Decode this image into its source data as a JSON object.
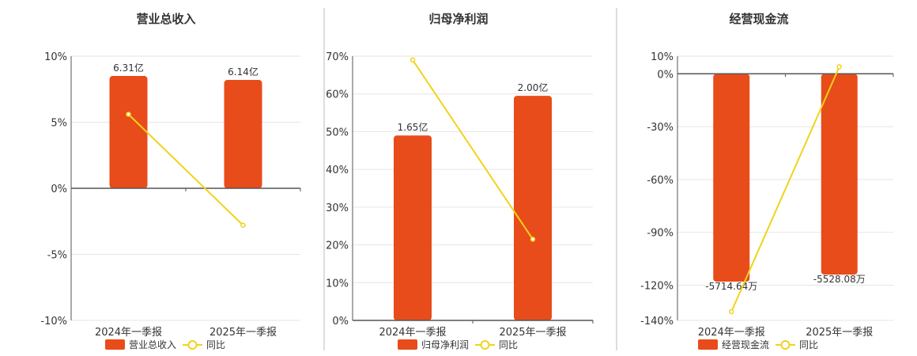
{
  "colors": {
    "bar": "#E84C1A",
    "line": "#F2D21B",
    "axis": "#555555",
    "grid": "#E6E6E6",
    "divider": "#BBBBBB",
    "text": "#333333"
  },
  "chart_data": [
    {
      "type": "bar",
      "title": "营业总收入",
      "categories": [
        "2024年一季报",
        "2025年一季报"
      ],
      "series": [
        {
          "name": "营业总收入",
          "kind": "bar",
          "labels": [
            "6.31亿",
            "6.14亿"
          ],
          "values": [
            8.5,
            8.2
          ]
        },
        {
          "name": "同比",
          "kind": "line",
          "values": [
            5.6,
            -2.8
          ]
        }
      ],
      "yticks": [
        "10%",
        "5%",
        "0%",
        "-5%",
        "-10%"
      ],
      "ytick_values": [
        10,
        5,
        0,
        -5,
        -10
      ],
      "ylim": [
        -10,
        10
      ],
      "legend_position": "bottom",
      "grid": true
    },
    {
      "type": "bar",
      "title": "归母净利润",
      "categories": [
        "2024年一季报",
        "2025年一季报"
      ],
      "series": [
        {
          "name": "归母净利润",
          "kind": "bar",
          "labels": [
            "1.65亿",
            "2.00亿"
          ],
          "values": [
            49,
            59.5
          ]
        },
        {
          "name": "同比",
          "kind": "line",
          "values": [
            69,
            21.5
          ]
        }
      ],
      "yticks": [
        "70%",
        "60%",
        "50%",
        "40%",
        "30%",
        "20%",
        "10%",
        "0%"
      ],
      "ytick_values": [
        70,
        60,
        50,
        40,
        30,
        20,
        10,
        0
      ],
      "ylim": [
        0,
        70
      ],
      "legend_position": "bottom",
      "grid": true
    },
    {
      "type": "bar",
      "title": "经营现金流",
      "categories": [
        "2024年一季报",
        "2025年一季报"
      ],
      "series": [
        {
          "name": "经营现金流",
          "kind": "bar",
          "labels": [
            "-5714.64万",
            "-5528.08万"
          ],
          "values": [
            -118,
            -114
          ]
        },
        {
          "name": "同比",
          "kind": "line",
          "values": [
            -135,
            4
          ]
        }
      ],
      "yticks": [
        "10%",
        "0%",
        "-30%",
        "-60%",
        "-90%",
        "-120%",
        "-140%"
      ],
      "ytick_values": [
        10,
        0,
        -30,
        -60,
        -90,
        -120,
        -140
      ],
      "ylim": [
        -140,
        10
      ],
      "legend_position": "bottom",
      "grid": true
    }
  ]
}
